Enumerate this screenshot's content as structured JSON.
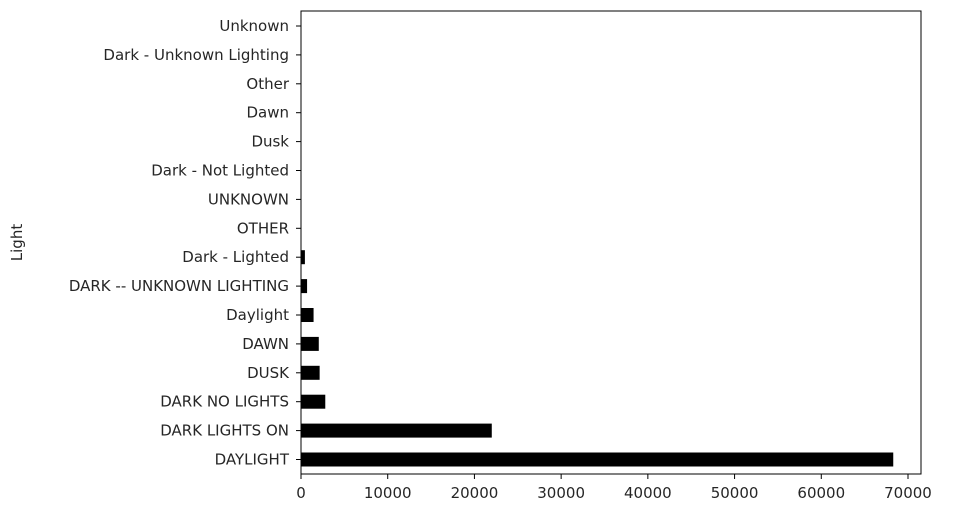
{
  "chart_data": {
    "type": "bar",
    "orientation": "horizontal",
    "title": "",
    "xlabel": "",
    "ylabel": "Light",
    "xlim": [
      0,
      71500
    ],
    "xticks": [
      0,
      10000,
      20000,
      30000,
      40000,
      50000,
      60000,
      70000
    ],
    "xtick_labels": [
      "0",
      "10000",
      "20000",
      "30000",
      "40000",
      "50000",
      "60000",
      "70000"
    ],
    "categories": [
      "DAYLIGHT",
      "DARK LIGHTS ON",
      "DARK NO LIGHTS",
      "DUSK",
      "DAWN",
      "Daylight",
      "DARK -- UNKNOWN LIGHTING",
      "Dark - Lighted",
      "OTHER",
      "UNKNOWN",
      "Dark - Not Lighted",
      "Dusk",
      "Dawn",
      "Other",
      "Dark - Unknown Lighting",
      "Unknown"
    ],
    "values": [
      68300,
      22000,
      2800,
      2150,
      2050,
      1450,
      700,
      450,
      30,
      20,
      10,
      8,
      6,
      4,
      3,
      2
    ],
    "bar_color": "#000000",
    "grid": false,
    "legend": "none"
  }
}
